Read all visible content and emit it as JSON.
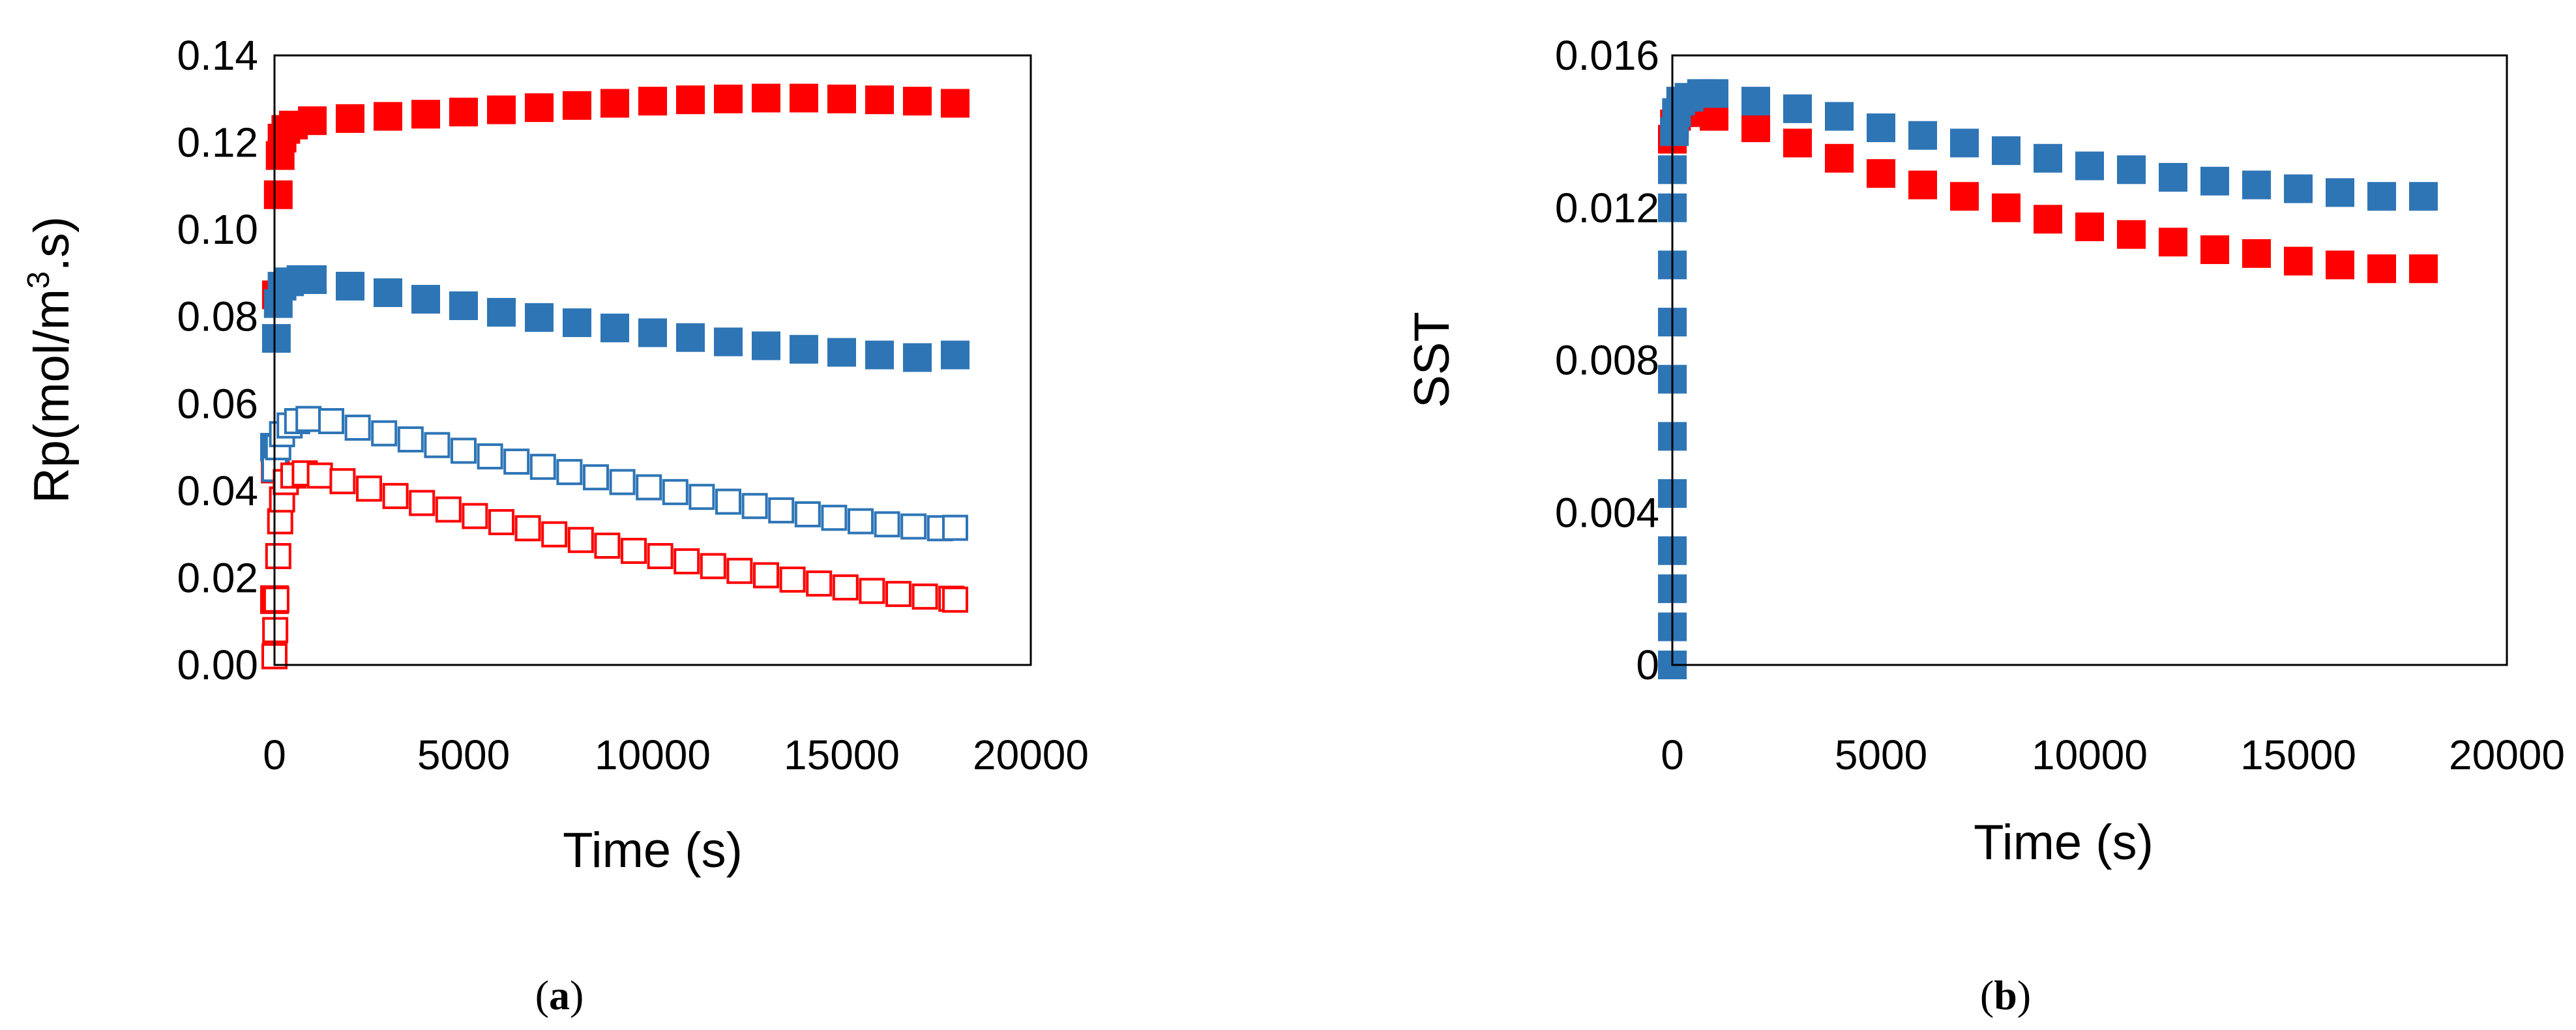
{
  "colors": {
    "red": "#ff0000",
    "blue": "#2e75b6"
  },
  "panels": [
    {
      "caption_open": "(",
      "caption_letter": "a",
      "caption_close": ")"
    },
    {
      "caption_open": "(",
      "caption_letter": "b",
      "caption_close": ")"
    }
  ],
  "chart_data": [
    {
      "type": "scatter",
      "title": "",
      "xlabel": "Time (s)",
      "ylabel_main": "Rp(mol/m",
      "ylabel_sup": "3",
      "ylabel_tail": ".s)",
      "xlim": [
        0,
        20000
      ],
      "ylim": [
        0,
        0.14
      ],
      "xticks": [
        0,
        5000,
        10000,
        15000,
        20000
      ],
      "xtick_labels": [
        "0",
        "5000",
        "10000",
        "15000",
        "20000"
      ],
      "yticks": [
        0,
        0.02,
        0.04,
        0.06,
        0.08,
        0.1,
        0.12,
        0.14
      ],
      "ytick_labels": [
        "0.00",
        "0.02",
        "0.04",
        "0.06",
        "0.08",
        "0.10",
        "0.12",
        "0.14"
      ],
      "grid": false,
      "series": [
        {
          "color": "red",
          "marker": "filled-square",
          "x": [
            0,
            20,
            50,
            100,
            150,
            200,
            300,
            500,
            1000,
            2000,
            3000,
            4000,
            5000,
            6000,
            7000,
            8000,
            9000,
            10000,
            11000,
            12000,
            13000,
            14000,
            15000,
            16000,
            17000,
            18000
          ],
          "y": [
            0.015,
            0.045,
            0.085,
            0.108,
            0.117,
            0.121,
            0.123,
            0.124,
            0.125,
            0.1255,
            0.126,
            0.1265,
            0.127,
            0.1275,
            0.128,
            0.1285,
            0.129,
            0.1295,
            0.1298,
            0.13,
            0.1302,
            0.1302,
            0.13,
            0.1298,
            0.1295,
            0.129
          ]
        },
        {
          "color": "blue",
          "marker": "filled-square",
          "x": [
            0,
            50,
            100,
            200,
            400,
            700,
            1000,
            2000,
            3000,
            4000,
            5000,
            6000,
            7000,
            8000,
            9000,
            10000,
            11000,
            12000,
            13000,
            14000,
            15000,
            16000,
            17000,
            18000
          ],
          "y": [
            0.05,
            0.075,
            0.083,
            0.087,
            0.088,
            0.0885,
            0.0885,
            0.087,
            0.0855,
            0.084,
            0.0825,
            0.081,
            0.0798,
            0.0786,
            0.0774,
            0.0763,
            0.0752,
            0.0742,
            0.0733,
            0.0725,
            0.0718,
            0.0712,
            0.0706,
            0.0712
          ]
        },
        {
          "color": "blue",
          "marker": "open-square",
          "x": [
            0,
            100,
            200,
            400,
            600,
            900,
            1500,
            2200,
            2900,
            3600,
            4300,
            5000,
            5700,
            6400,
            7100,
            7800,
            8500,
            9200,
            9900,
            10600,
            11300,
            12000,
            12700,
            13400,
            14100,
            14800,
            15500,
            16200,
            16900,
            17600,
            18000
          ],
          "y": [
            0.045,
            0.05,
            0.053,
            0.055,
            0.056,
            0.0565,
            0.056,
            0.0545,
            0.0532,
            0.0518,
            0.0505,
            0.0492,
            0.0479,
            0.0467,
            0.0455,
            0.0443,
            0.0431,
            0.042,
            0.0408,
            0.0397,
            0.0386,
            0.0375,
            0.0365,
            0.0355,
            0.0346,
            0.0338,
            0.033,
            0.0323,
            0.0318,
            0.0314,
            0.0315
          ]
        },
        {
          "color": "red",
          "marker": "open-square",
          "x": [
            0,
            20,
            50,
            100,
            150,
            200,
            300,
            500,
            800,
            1200,
            1800,
            2500,
            3200,
            3900,
            4600,
            5300,
            6000,
            6700,
            7400,
            8100,
            8800,
            9500,
            10200,
            10900,
            11600,
            12300,
            13000,
            13700,
            14400,
            15100,
            15800,
            16500,
            17200,
            17900,
            18000
          ],
          "y": [
            0.002,
            0.008,
            0.015,
            0.025,
            0.033,
            0.038,
            0.042,
            0.0435,
            0.044,
            0.0435,
            0.0422,
            0.0405,
            0.0388,
            0.0372,
            0.0357,
            0.0342,
            0.0328,
            0.0314,
            0.03,
            0.0287,
            0.0274,
            0.0262,
            0.025,
            0.0238,
            0.0227,
            0.0216,
            0.0206,
            0.0196,
            0.0187,
            0.0178,
            0.017,
            0.0163,
            0.0157,
            0.0152,
            0.015
          ]
        }
      ]
    },
    {
      "type": "scatter",
      "title": "",
      "xlabel": "Time (s)",
      "ylabel": "SST",
      "xlim": [
        0,
        20000
      ],
      "ylim": [
        0,
        0.016
      ],
      "xticks": [
        0,
        5000,
        10000,
        15000,
        20000
      ],
      "xtick_labels": [
        "0",
        "5000",
        "10000",
        "15000",
        "20000"
      ],
      "yticks": [
        0,
        0.004,
        0.008,
        0.012,
        0.016
      ],
      "ytick_labels": [
        "0",
        "0.004",
        "0.008",
        "0.012",
        "0.016"
      ],
      "grid": false,
      "series": [
        {
          "color": "red",
          "marker": "filled-square",
          "x": [
            0,
            50,
            100,
            200,
            400,
            700,
            1000,
            2000,
            3000,
            4000,
            5000,
            6000,
            7000,
            8000,
            9000,
            10000,
            11000,
            12000,
            13000,
            14000,
            15000,
            16000,
            17000,
            18000
          ],
          "y": [
            0.0138,
            0.0142,
            0.0144,
            0.0145,
            0.0145,
            0.0145,
            0.0144,
            0.0141,
            0.0137,
            0.0133,
            0.0129,
            0.0126,
            0.0123,
            0.012,
            0.0117,
            0.0115,
            0.0113,
            0.0111,
            0.0109,
            0.0108,
            0.0106,
            0.0105,
            0.0104,
            0.0104
          ]
        },
        {
          "color": "blue",
          "marker": "filled-square",
          "x": [
            0,
            0,
            0,
            0,
            0,
            0,
            0,
            0,
            0,
            0,
            0,
            50,
            100,
            200,
            400,
            700,
            1000,
            2000,
            3000,
            4000,
            5000,
            6000,
            7000,
            8000,
            9000,
            10000,
            11000,
            12000,
            13000,
            14000,
            15000,
            16000,
            17000,
            18000
          ],
          "y": [
            0,
            0.001,
            0.002,
            0.003,
            0.0045,
            0.006,
            0.0075,
            0.009,
            0.0105,
            0.012,
            0.013,
            0.014,
            0.0145,
            0.0148,
            0.0149,
            0.015,
            0.015,
            0.0148,
            0.0146,
            0.0144,
            0.0141,
            0.0139,
            0.0137,
            0.0135,
            0.0133,
            0.0131,
            0.013,
            0.0128,
            0.0127,
            0.0126,
            0.0125,
            0.0124,
            0.0123,
            0.0123
          ]
        }
      ]
    }
  ]
}
